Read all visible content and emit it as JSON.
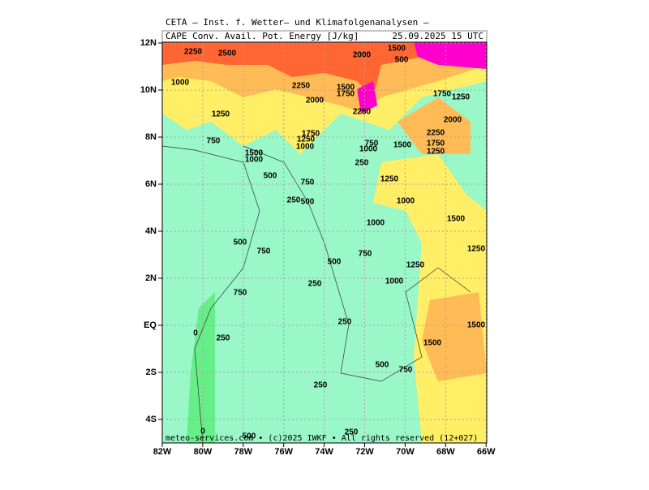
{
  "header": {
    "line1": "CETA — Inst. f. Wetter— und Klimafolgenanalysen —",
    "line2": "CAPE Conv. Avail. Pot. Energy [J/kg]",
    "time": "25.09.2025 15 UTC"
  },
  "axes": {
    "lat": [
      "12N",
      "10N",
      "8N",
      "6N",
      "4N",
      "2N",
      "EQ",
      "2S",
      "4S"
    ],
    "lon": [
      "82W",
      "80W",
      "78W",
      "76W",
      "74W",
      "72W",
      "70W",
      "68W",
      "66W"
    ]
  },
  "contour_labels": [
    "2250",
    "2500",
    "1000",
    "2250",
    "2000",
    "1500",
    "1750",
    "2000",
    "500",
    "1500",
    "2250",
    "1250",
    "750",
    "1750",
    "1250",
    "1000",
    "1500",
    "1000",
    "750",
    "1000",
    "1500",
    "1750",
    "1250",
    "2000",
    "2250",
    "1750",
    "1250",
    "250",
    "500",
    "750",
    "1250",
    "250",
    "500",
    "1000",
    "1000",
    "1500",
    "500",
    "750",
    "500",
    "750",
    "1250",
    "1250",
    "250",
    "1000",
    "750",
    "250",
    "1500",
    "0",
    "250",
    "1500",
    "500",
    "750",
    "250",
    "0",
    "500",
    "250"
  ],
  "footer": "meteo-services.com • (c)2025 IWKF • All rights reserved (12+027)"
}
